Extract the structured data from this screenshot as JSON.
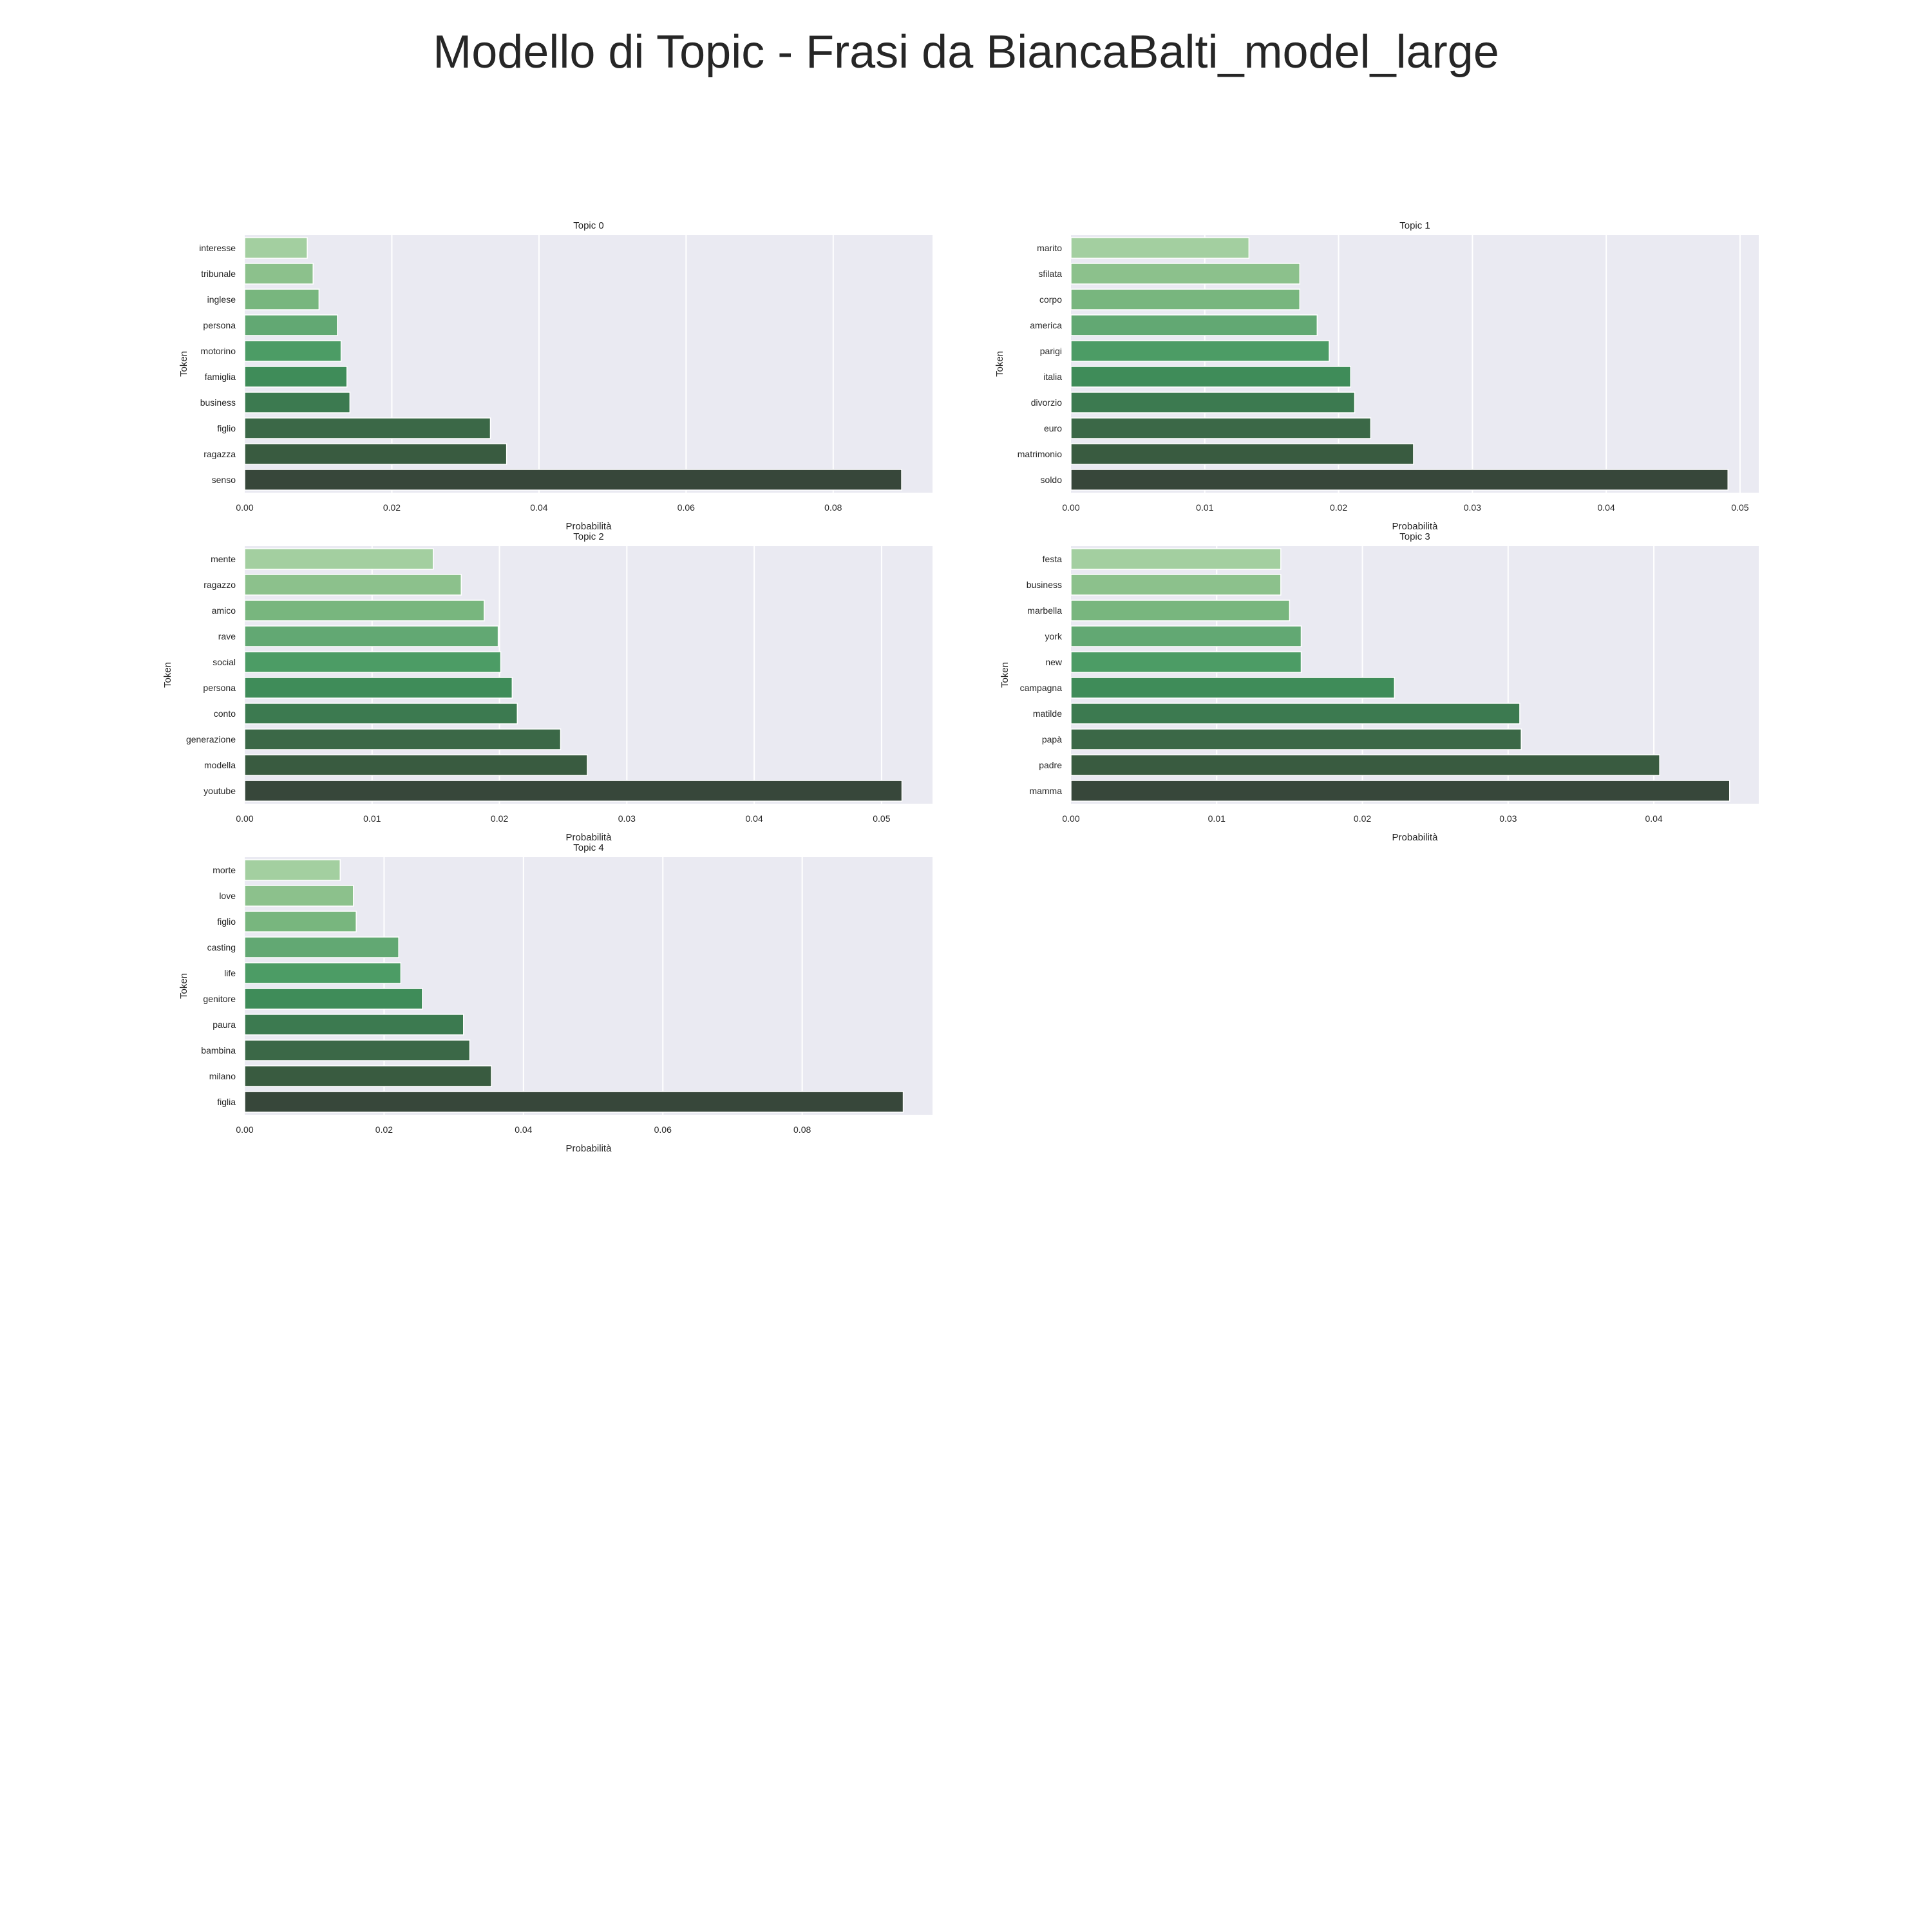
{
  "figure": {
    "title": "Modello di Topic - Frasi da BiancaBalti_model_large"
  },
  "chart_data": [
    {
      "type": "bar",
      "orientation": "horizontal",
      "title": "Topic 0",
      "xlabel": "Probabilità",
      "ylabel": "Token",
      "grid": true,
      "xlim": [
        0,
        0.0935
      ],
      "xticks": [
        0.0,
        0.02,
        0.04,
        0.06,
        0.08
      ],
      "xtick_labels": [
        "0.00",
        "0.02",
        "0.04",
        "0.06",
        "0.08"
      ],
      "categories": [
        "interesse",
        "tribunale",
        "inglese",
        "persona",
        "motorino",
        "famiglia",
        "business",
        "figlio",
        "ragazza",
        "senso"
      ],
      "values": [
        0.0085,
        0.0093,
        0.0101,
        0.0126,
        0.0131,
        0.0139,
        0.0143,
        0.0334,
        0.0356,
        0.0893
      ]
    },
    {
      "type": "bar",
      "orientation": "horizontal",
      "title": "Topic 1",
      "xlabel": "Probabilità",
      "ylabel": "Token",
      "grid": true,
      "xlim": [
        0,
        0.0514
      ],
      "xticks": [
        0.0,
        0.01,
        0.02,
        0.03,
        0.04,
        0.05
      ],
      "xtick_labels": [
        "0.00",
        "0.01",
        "0.02",
        "0.03",
        "0.04",
        "0.05"
      ],
      "categories": [
        "marito",
        "sfilata",
        "corpo",
        "america",
        "parigi",
        "italia",
        "divorzio",
        "euro",
        "matrimonio",
        "soldo"
      ],
      "values": [
        0.0133,
        0.0171,
        0.0171,
        0.0184,
        0.0193,
        0.0209,
        0.0212,
        0.0224,
        0.0256,
        0.0491
      ]
    },
    {
      "type": "bar",
      "orientation": "horizontal",
      "title": "Topic 2",
      "xlabel": "Probabilità",
      "ylabel": "Token",
      "grid": true,
      "xlim": [
        0,
        0.054
      ],
      "xticks": [
        0.0,
        0.01,
        0.02,
        0.03,
        0.04,
        0.05
      ],
      "xtick_labels": [
        "0.00",
        "0.01",
        "0.02",
        "0.03",
        "0.04",
        "0.05"
      ],
      "categories": [
        "mente",
        "ragazzo",
        "amico",
        "rave",
        "social",
        "persona",
        "conto",
        "generazione",
        "modella",
        "youtube"
      ],
      "values": [
        0.0148,
        0.017,
        0.0188,
        0.0199,
        0.0201,
        0.021,
        0.0214,
        0.0248,
        0.0269,
        0.0516
      ]
    },
    {
      "type": "bar",
      "orientation": "horizontal",
      "title": "Topic 3",
      "xlabel": "Probabilità",
      "ylabel": "Token",
      "grid": true,
      "xlim": [
        0,
        0.0472
      ],
      "xticks": [
        0.0,
        0.01,
        0.02,
        0.03,
        0.04
      ],
      "xtick_labels": [
        "0.00",
        "0.01",
        "0.02",
        "0.03",
        "0.04"
      ],
      "categories": [
        "festa",
        "business",
        "marbella",
        "york",
        "new",
        "campagna",
        "matilde",
        "papà",
        "padre",
        "mamma"
      ],
      "values": [
        0.0144,
        0.0144,
        0.015,
        0.0158,
        0.0158,
        0.0222,
        0.0308,
        0.0309,
        0.0404,
        0.0452
      ]
    },
    {
      "type": "bar",
      "orientation": "horizontal",
      "title": "Topic 4",
      "xlabel": "Probabilità",
      "ylabel": "Token",
      "grid": true,
      "xlim": [
        0,
        0.0987
      ],
      "xticks": [
        0.0,
        0.02,
        0.04,
        0.06,
        0.08
      ],
      "xtick_labels": [
        "0.00",
        "0.02",
        "0.04",
        "0.06",
        "0.08"
      ],
      "categories": [
        "morte",
        "love",
        "figlio",
        "casting",
        "life",
        "genitore",
        "paura",
        "bambina",
        "milano",
        "figlia"
      ],
      "values": [
        0.0137,
        0.0156,
        0.016,
        0.0221,
        0.0224,
        0.0255,
        0.0314,
        0.0323,
        0.0354,
        0.0945
      ]
    }
  ],
  "colors": {
    "axes_background": "#eaeaf2",
    "grid": "#ffffff",
    "text": "#262626",
    "bar_palette": [
      "#a3cfa0",
      "#8cc18c",
      "#78b67e",
      "#62a873",
      "#4c9c65",
      "#3f8c59",
      "#3c7a50",
      "#3b6847",
      "#395b40",
      "#37473a"
    ]
  }
}
